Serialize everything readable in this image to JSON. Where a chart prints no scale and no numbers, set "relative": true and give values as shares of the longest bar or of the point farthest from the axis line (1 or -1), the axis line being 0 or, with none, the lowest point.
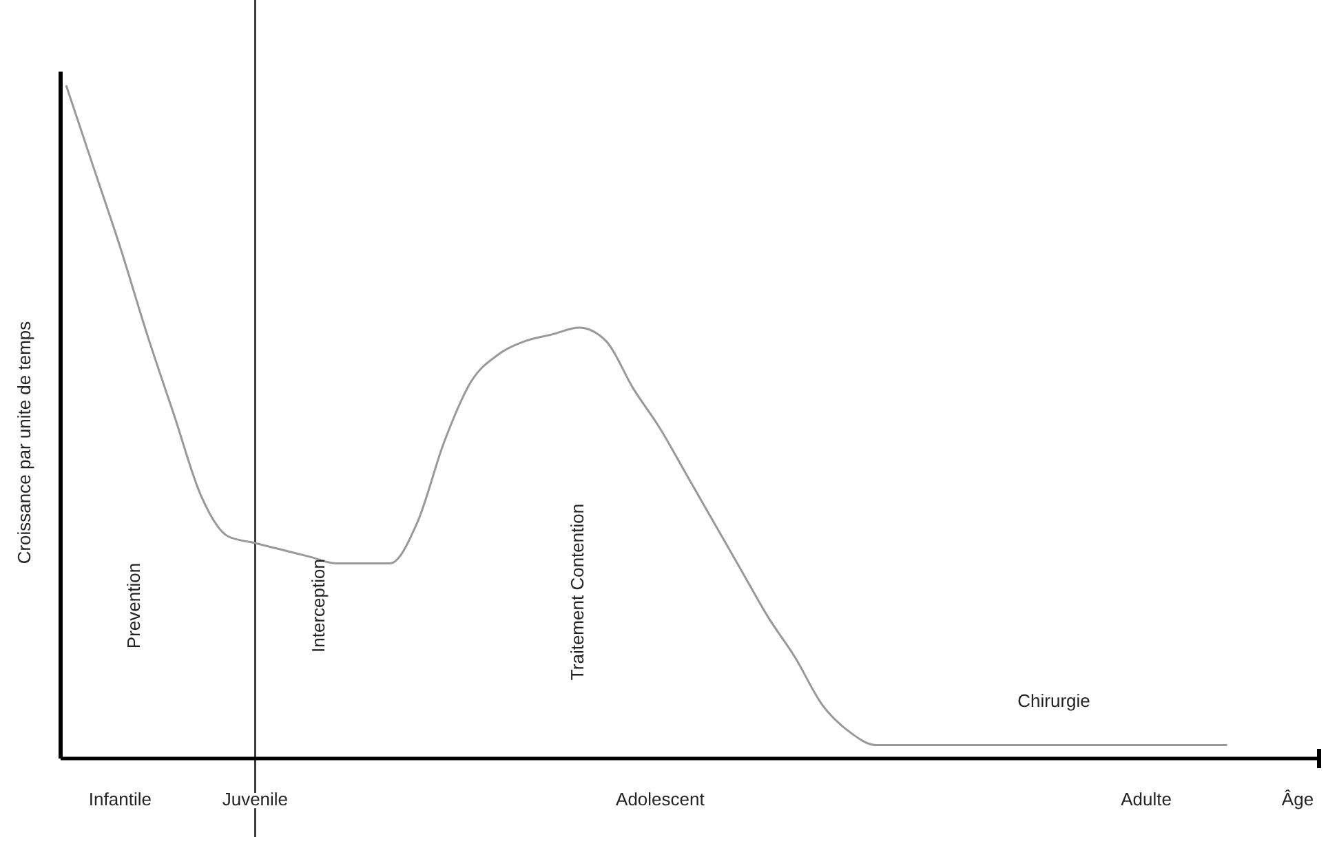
{
  "chart_data": {
    "type": "line",
    "relative": true,
    "xlabel": "Âge",
    "ylabel": "Croissance par unite de temps",
    "categories": [
      null,
      null,
      "Infantile",
      null,
      null,
      null,
      null,
      "Juvenile",
      null,
      null,
      null,
      null,
      null,
      null,
      null,
      null,
      null,
      null,
      null,
      null,
      null,
      null,
      "Adolescent",
      null,
      null,
      null,
      null,
      null,
      null,
      null,
      null,
      null,
      null,
      null,
      null,
      null,
      null,
      null,
      null,
      null,
      "Adulte",
      null,
      null,
      null
    ],
    "series": [
      {
        "color": "#999999",
        "values": [
          1,
          0.88,
          0.76,
          0.63,
          0.51,
          0.39,
          0.33,
          0.32,
          0.31,
          0.3,
          0.29,
          0.29,
          0.29,
          0.35,
          0.47,
          0.56,
          0.6,
          0.62,
          0.63,
          0.64,
          0.62,
          0.55,
          0.49,
          0.42,
          0.35,
          0.28,
          0.21,
          0.15,
          0.08,
          0.04,
          0.02,
          0.02,
          0.02,
          0.02,
          0.02,
          0.02,
          0.02,
          0.02,
          0.02,
          0.02,
          0.02,
          0.02,
          0.02,
          0.02
        ]
      }
    ],
    "ref_lines": [
      {
        "axis": "x",
        "value": "Juvenile",
        "color": "#111111"
      }
    ],
    "annotations": [
      "Prevention",
      "Interception",
      "Traitement Contention",
      "Chirurgie"
    ],
    "marker": "none",
    "line_style": "solid"
  }
}
